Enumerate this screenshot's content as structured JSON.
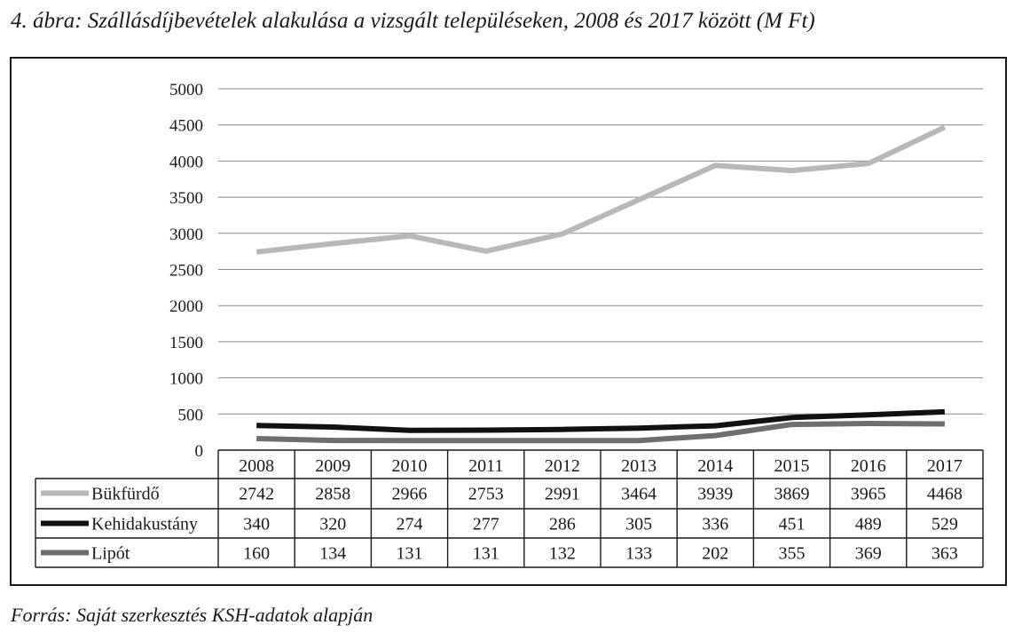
{
  "figure_title": "4. ábra: Szállásdíjbevételek alakulása a vizsgált településeken, 2008 és 2017 között (M Ft)",
  "source": "Forrás: Saját szerkesztés KSH-adatok alapján",
  "chart_data": {
    "type": "line",
    "title": "4. ábra: Szállásdíjbevételek alakulása a vizsgált településeken, 2008 és 2017 között (M Ft)",
    "xlabel": "",
    "ylabel": "",
    "categories": [
      "2008",
      "2009",
      "2010",
      "2011",
      "2012",
      "2013",
      "2014",
      "2015",
      "2016",
      "2017"
    ],
    "y_ticks": [
      "0",
      "500",
      "1000",
      "1500",
      "2000",
      "2500",
      "3000",
      "3500",
      "4000",
      "4500",
      "5000"
    ],
    "ylim": [
      0,
      5000
    ],
    "grid": true,
    "legend": "data-table-below",
    "series": [
      {
        "name": "Bükfürdő",
        "color": "#b8b8b8",
        "values": [
          2742,
          2858,
          2966,
          2753,
          2991,
          3464,
          3939,
          3869,
          3965,
          4468
        ]
      },
      {
        "name": "Kehidakustány",
        "color": "#111111",
        "values": [
          340,
          320,
          274,
          277,
          286,
          305,
          336,
          451,
          489,
          529
        ]
      },
      {
        "name": "Lipót",
        "color": "#6e6e6e",
        "values": [
          160,
          134,
          131,
          131,
          132,
          133,
          202,
          355,
          369,
          363
        ]
      }
    ]
  }
}
